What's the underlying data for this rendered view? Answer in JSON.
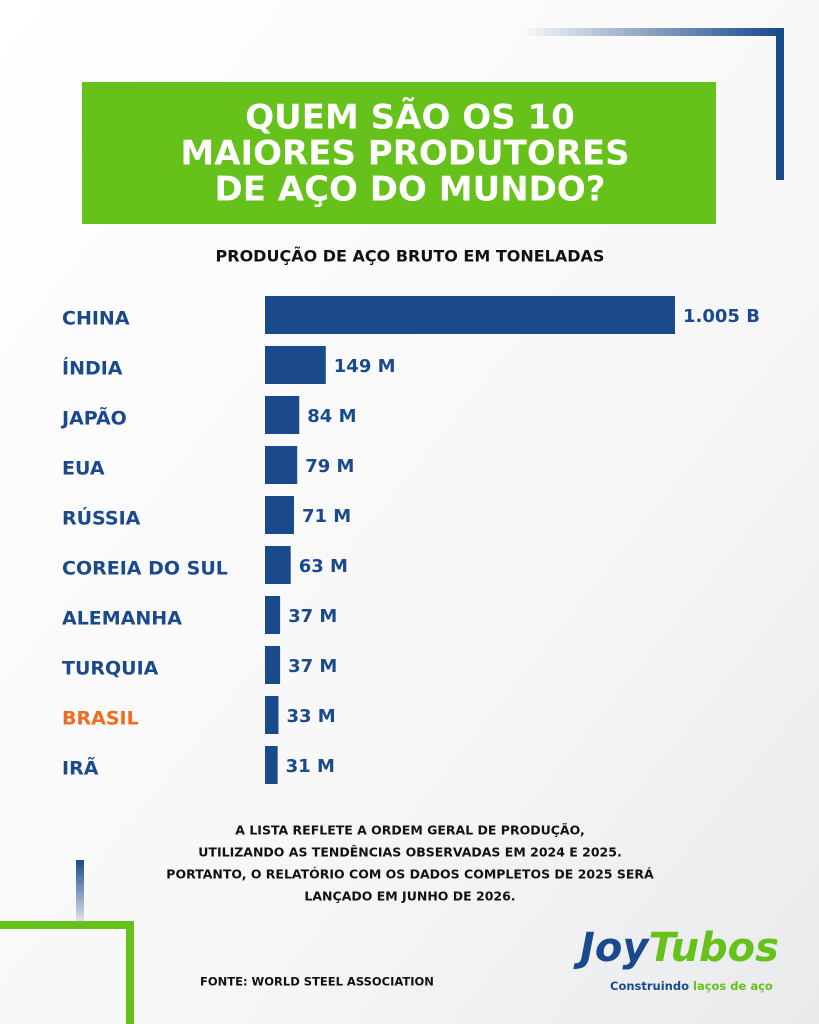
{
  "chart_data": {
    "type": "bar",
    "orientation": "horizontal",
    "title": [
      "QUEM SÃO OS 10",
      "MAIORES PRODUTORES",
      "DE AÇO DO MUNDO?"
    ],
    "subtitle": "PRODUÇÃO DE AÇO BRUTO EM TONELADAS",
    "categories": [
      "CHINA",
      "ÍNDIA",
      "JAPÃO",
      "EUA",
      "RÚSSIA",
      "COREIA DO SUL",
      "ALEMANHA",
      "TURQUIA",
      "BRASIL",
      "IRÃ"
    ],
    "category_colors": [
      "#1a4a8c",
      "#1a4a8c",
      "#1a4a8c",
      "#1a4a8c",
      "#1a4a8c",
      "#1a4a8c",
      "#1a4a8c",
      "#1a4a8c",
      "#f26b1d",
      "#1a4a8c"
    ],
    "values": [
      1005,
      149,
      84,
      79,
      71,
      63,
      37,
      37,
      33,
      31
    ],
    "value_labels": [
      "1.005 B",
      "149 M",
      "84 M",
      "79 M",
      "71 M",
      "63 M",
      "37 M",
      "37 M",
      "33 M",
      "31 M"
    ],
    "color": "#1a4a8c",
    "note": [
      "A LISTA  REFLETE A ORDEM GERAL DE PRODUÇÃO,",
      "UTILIZANDO AS TENDÊNCIAS OBSERVADAS EM 2024 E 2025.",
      "PORTANTO, O RELATÓRIO COM OS DADOS COMPLETOS DE 2025 SERÁ",
      "LANÇADO EM JUNHO DE 2026."
    ],
    "source": "FONTE: WORLD STEEL ASSOCIATION"
  },
  "brand": {
    "name": [
      "Joy",
      "Tubos"
    ],
    "tagline": [
      "Construindo",
      "laços de aço"
    ]
  }
}
